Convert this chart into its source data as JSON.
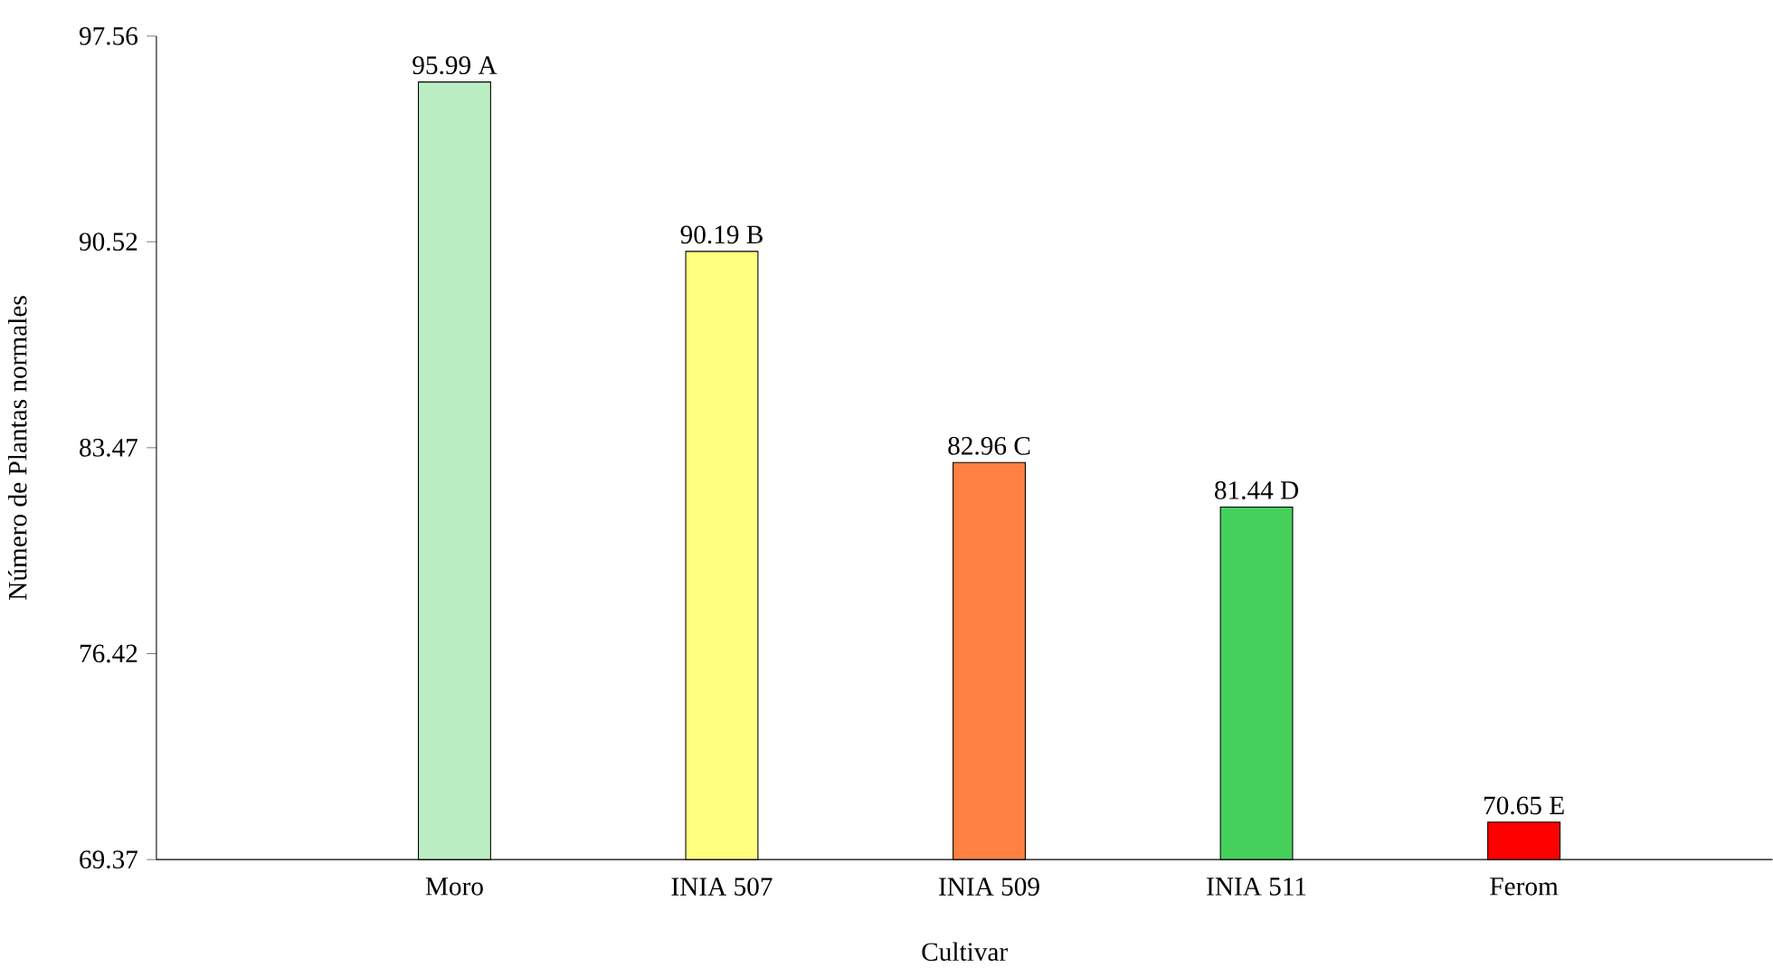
{
  "chart_data": {
    "type": "bar",
    "xlabel": "Cultivar",
    "ylabel": "Número de Plantas normales",
    "categories": [
      "Moro",
      "INIA 507",
      "INIA 509",
      "INIA 511",
      "Ferom"
    ],
    "values": [
      95.99,
      90.19,
      82.96,
      81.44,
      70.65
    ],
    "colors": [
      "#bbefc3",
      "#ffff80",
      "#ff8040",
      "#45cf5b",
      "#ff0000"
    ],
    "value_labels": [
      "95.99 A",
      "90.19 B",
      "82.96 C",
      "81.44 D",
      "70.65 E"
    ],
    "ylim": [
      69.37,
      97.56
    ],
    "yticks": [
      69.37,
      76.42,
      83.47,
      90.52,
      97.56
    ],
    "grid": false
  }
}
